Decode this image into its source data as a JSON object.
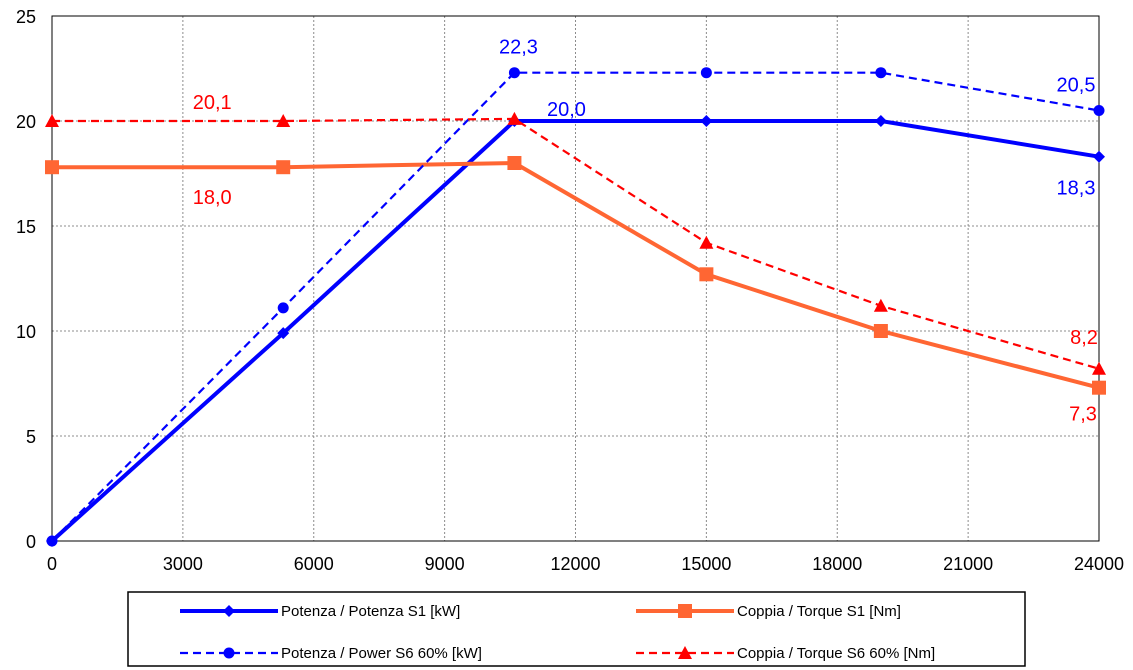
{
  "chart_data": {
    "type": "line",
    "xlim": [
      0,
      24000
    ],
    "ylim": [
      0,
      25
    ],
    "x_ticks": [
      "0",
      "3000",
      "6000",
      "9000",
      "12000",
      "15000",
      "18000",
      "21000",
      "24000"
    ],
    "y_ticks": [
      "0",
      "5",
      "10",
      "15",
      "20",
      "25"
    ],
    "grid": true,
    "legend_position": "bottom",
    "series": [
      {
        "name": "Potenza / Potenza S1 [kW]",
        "color": "#0000FF",
        "style": "solid",
        "marker": "diamond",
        "x": [
          0,
          5300,
          10600,
          15000,
          19000,
          24000
        ],
        "y": [
          0,
          9.9,
          20.0,
          20.0,
          20.0,
          18.3
        ]
      },
      {
        "name": "Coppia / Torque S1 [Nm]",
        "color": "#FF6633",
        "style": "solid",
        "marker": "square",
        "x": [
          0,
          5300,
          10600,
          15000,
          19000,
          24000
        ],
        "y": [
          17.8,
          17.8,
          18.0,
          12.7,
          10.0,
          7.3
        ]
      },
      {
        "name": "Potenza / Power S6 60% [kW]",
        "color": "#0000FF",
        "style": "dashed",
        "marker": "circle",
        "x": [
          0,
          5300,
          10600,
          15000,
          19000,
          24000
        ],
        "y": [
          0,
          11.1,
          22.3,
          22.3,
          22.3,
          20.5
        ]
      },
      {
        "name": "Coppia / Torque S6 60% [Nm]",
        "color": "#FF0000",
        "style": "dashed",
        "marker": "triangle",
        "x": [
          0,
          5300,
          10600,
          15000,
          19000,
          24000
        ],
        "y": [
          20.0,
          20.0,
          20.1,
          14.2,
          11.2,
          8.2
        ]
      }
    ],
    "annotations": [
      {
        "text": "22,3",
        "x": 10600,
        "y": 22.3,
        "color": "#0000FF"
      },
      {
        "text": "20,0",
        "x": 10600,
        "y": 20.0,
        "color": "#0000FF"
      },
      {
        "text": "20,5",
        "x": 24000,
        "y": 20.5,
        "color": "#0000FF"
      },
      {
        "text": "18,3",
        "x": 24000,
        "y": 18.3,
        "color": "#0000FF"
      },
      {
        "text": "20,1",
        "x": 5300,
        "y": 20.0,
        "color": "#FF0000"
      },
      {
        "text": "18,0",
        "x": 5300,
        "y": 17.8,
        "color": "#FF0000"
      },
      {
        "text": "8,2",
        "x": 24000,
        "y": 8.2,
        "color": "#FF0000"
      },
      {
        "text": "7,3",
        "x": 24000,
        "y": 7.3,
        "color": "#FF0000"
      }
    ]
  }
}
